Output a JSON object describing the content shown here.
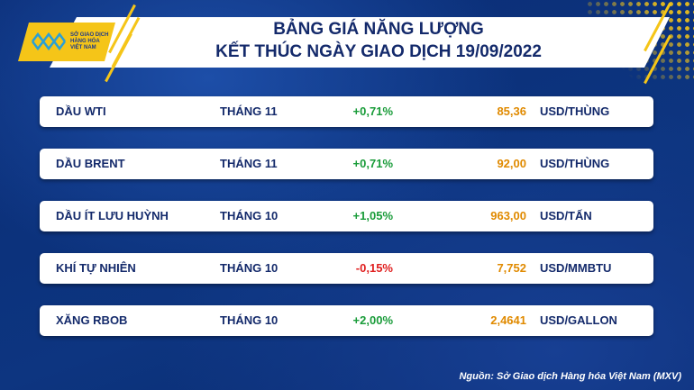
{
  "logo": {
    "text_lines": [
      "SỞ GIAO DỊCH",
      "HÀNG HÓA",
      "VIỆT NAM"
    ]
  },
  "header": {
    "title_line1": "BẢNG GIÁ NĂNG LƯỢNG",
    "title_line2": "KẾT THÚC NGÀY GIAO DỊCH 19/09/2022"
  },
  "rows": [
    {
      "name": "DẦU WTI",
      "month": "THÁNG 11",
      "change": "+0,71%",
      "price": "85,36",
      "unit": "USD/THÙNG",
      "direction": "up"
    },
    {
      "name": "DẦU BRENT",
      "month": "THÁNG 11",
      "change": "+0,71%",
      "price": "92,00",
      "unit": "USD/THÙNG",
      "direction": "up"
    },
    {
      "name": "DẦU ÍT LƯU HUỲNH",
      "month": "THÁNG 10",
      "change": "+1,05%",
      "price": "963,00",
      "unit": "USD/TẤN",
      "direction": "up"
    },
    {
      "name": "KHÍ TỰ NHIÊN",
      "month": "THÁNG 10",
      "change": "-0,15%",
      "price": "7,752",
      "unit": "USD/MMBTU",
      "direction": "down"
    },
    {
      "name": "XĂNG RBOB",
      "month": "THÁNG 10",
      "change": "+2,00%",
      "price": "2,4641",
      "unit": "USD/GALLON",
      "direction": "up"
    }
  ],
  "source": "Nguồn: Sở Giao dịch Hàng hóa Việt Nam (MXV)",
  "colors": {
    "background": "#0b2f78",
    "accent": "#f5c518",
    "up": "#1a9c3a",
    "down": "#e02020",
    "price": "#e08a00"
  }
}
